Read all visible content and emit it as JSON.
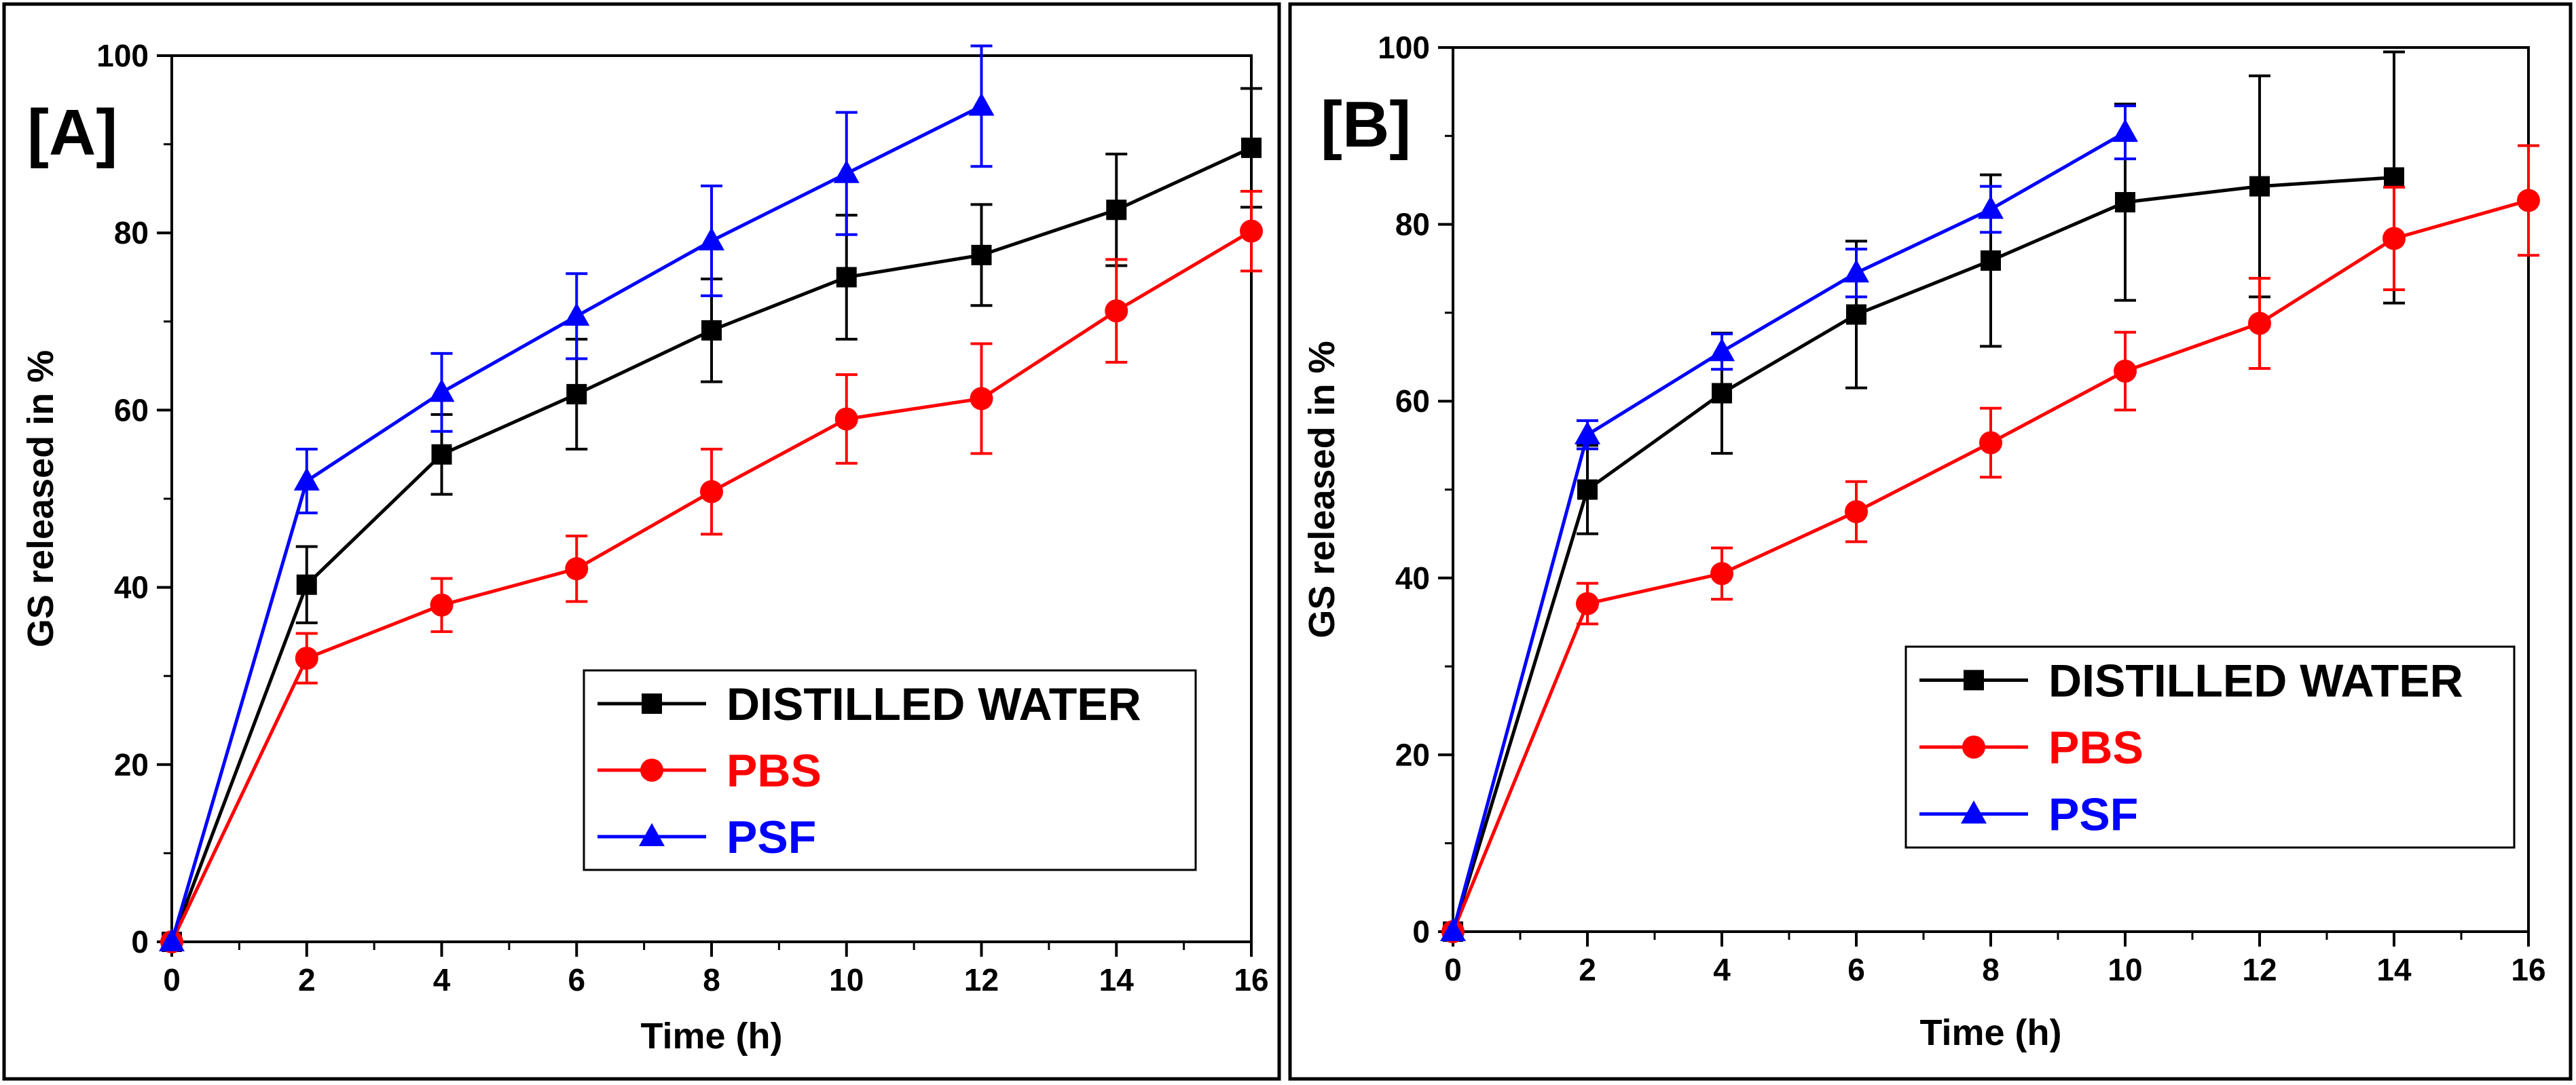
{
  "chart_data": [
    {
      "type": "line",
      "panel_label": "[A]",
      "title": "",
      "xlabel": "Time (h)",
      "ylabel": "GS released in %",
      "xlim": [
        0,
        16
      ],
      "ylim": [
        0,
        100
      ],
      "xticks": [
        0,
        2,
        4,
        6,
        8,
        10,
        12,
        14,
        16
      ],
      "yticks": [
        0,
        20,
        40,
        60,
        80,
        100
      ],
      "legend_position": "bottom-right",
      "series": [
        {
          "name": "DISTILLED WATER",
          "color": "#000000",
          "marker": "square",
          "x": [
            0,
            2,
            4,
            6,
            8,
            10,
            12,
            14,
            16
          ],
          "y": [
            0,
            40.3,
            55.0,
            61.8,
            69.0,
            75.0,
            77.5,
            82.6,
            89.6
          ],
          "err": [
            0,
            4.3,
            4.5,
            6.2,
            5.8,
            7.0,
            5.7,
            6.3,
            6.7
          ]
        },
        {
          "name": "PBS",
          "color": "#ff0000",
          "marker": "circle",
          "x": [
            0,
            2,
            4,
            6,
            8,
            10,
            12,
            14,
            16
          ],
          "y": [
            0,
            32.0,
            38.0,
            42.1,
            50.8,
            59.0,
            61.3,
            71.2,
            80.2
          ],
          "err": [
            0,
            2.8,
            3.0,
            3.7,
            4.8,
            5.0,
            6.2,
            5.8,
            4.5
          ]
        },
        {
          "name": "PSF",
          "color": "#0000ff",
          "marker": "triangle",
          "x": [
            0,
            2,
            4,
            6,
            8,
            10,
            12
          ],
          "y": [
            0,
            52.0,
            62.0,
            70.6,
            79.1,
            86.7,
            94.3
          ],
          "err": [
            0,
            3.6,
            4.4,
            4.8,
            6.2,
            6.9,
            6.8
          ]
        }
      ]
    },
    {
      "type": "line",
      "panel_label": "[B]",
      "title": "",
      "xlabel": "Time (h)",
      "ylabel": "GS released in %",
      "xlim": [
        0,
        16
      ],
      "ylim": [
        0,
        100
      ],
      "xticks": [
        0,
        2,
        4,
        6,
        8,
        10,
        12,
        14,
        16
      ],
      "yticks": [
        0,
        20,
        40,
        60,
        80,
        100
      ],
      "legend_position": "bottom-right",
      "series": [
        {
          "name": "DISTILLED WATER",
          "color": "#000000",
          "marker": "square",
          "x": [
            0,
            2,
            4,
            6,
            8,
            10,
            12,
            14
          ],
          "y": [
            0,
            50.0,
            60.9,
            69.8,
            75.9,
            82.5,
            84.3,
            85.3
          ],
          "err": [
            0,
            5.0,
            6.8,
            8.3,
            9.7,
            11.1,
            12.5,
            14.2
          ]
        },
        {
          "name": "PBS",
          "color": "#ff0000",
          "marker": "circle",
          "x": [
            0,
            2,
            4,
            6,
            8,
            10,
            12,
            14,
            16
          ],
          "y": [
            0,
            37.1,
            40.5,
            47.5,
            55.3,
            63.4,
            68.8,
            78.4,
            82.7
          ],
          "err": [
            0,
            2.3,
            2.9,
            3.4,
            3.9,
            4.4,
            5.1,
            5.8,
            6.2
          ]
        },
        {
          "name": "PSF",
          "color": "#0000ff",
          "marker": "triangle",
          "x": [
            0,
            2,
            4,
            6,
            8,
            10
          ],
          "y": [
            0,
            56.2,
            65.6,
            74.5,
            81.7,
            90.4
          ],
          "err": [
            0,
            1.6,
            2.0,
            2.7,
            2.6,
            3.0
          ]
        }
      ]
    }
  ]
}
